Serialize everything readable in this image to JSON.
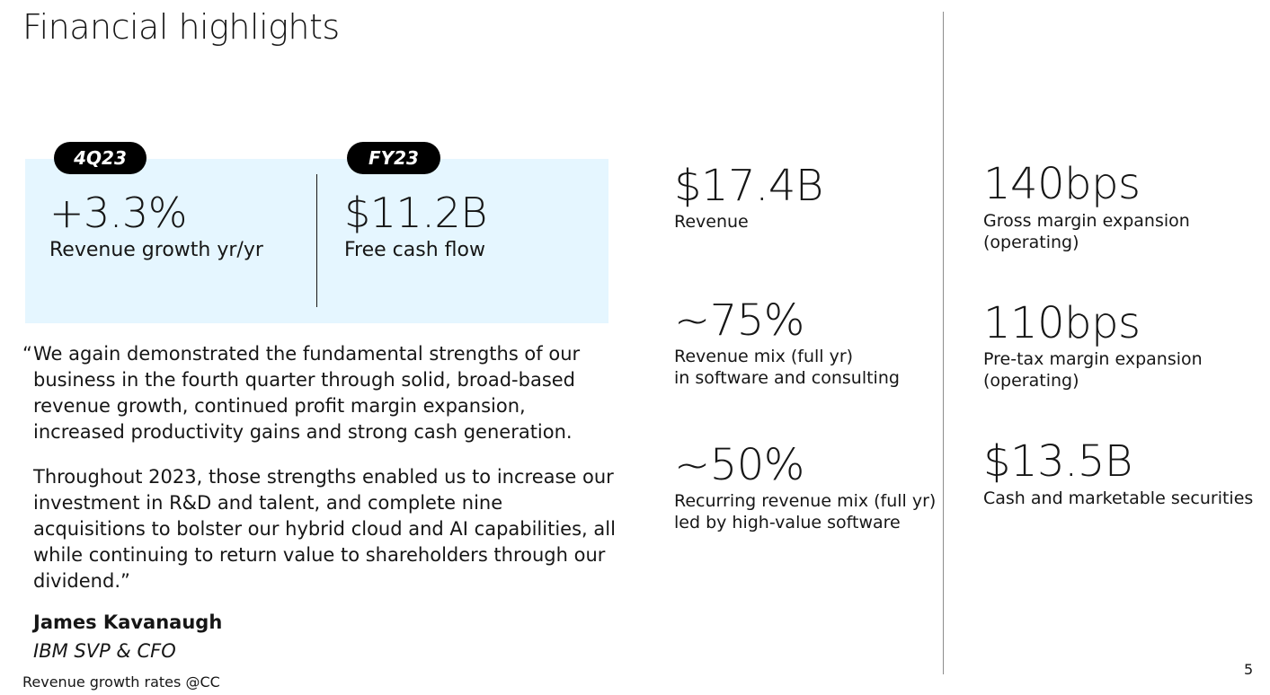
{
  "title": "Financial highlights",
  "left_panel": {
    "quarter_pill": "4Q23",
    "year_pill": "FY23",
    "quarter_kpi": {
      "value": "+3.3%",
      "label": "Revenue growth yr/yr"
    },
    "year_kpi": {
      "value": "$11.2B",
      "label": "Free cash flow"
    }
  },
  "quote": {
    "open_mark": "“",
    "paragraph_1": "We again demonstrated the fundamental strengths of our business in the fourth quarter through solid, broad-based revenue growth, continued profit margin expansion, increased productivity gains and strong cash generation.",
    "paragraph_2": "Throughout 2023, those strengths enabled us to increase our investment in R&D and talent, and complete nine acquisitions to bolster our hybrid cloud and AI capabilities, all while continuing to return value to shareholders through our dividend.”",
    "speaker_name": "James Kavanaugh",
    "speaker_title": "IBM SVP & CFO"
  },
  "middle_stats": [
    {
      "value": "$17.4B",
      "label_lines": [
        "Revenue"
      ]
    },
    {
      "value": "~75%",
      "label_lines": [
        "Revenue mix (full yr)",
        "in software and consulting"
      ]
    },
    {
      "value": "~50%",
      "label_lines": [
        "Recurring revenue mix (full yr)",
        "led by high-value software"
      ]
    }
  ],
  "right_stats": [
    {
      "value": "140bps",
      "label_lines": [
        "Gross margin expansion",
        "(operating)"
      ]
    },
    {
      "value": "110bps",
      "label_lines": [
        "Pre-tax margin expansion",
        "(operating)"
      ]
    },
    {
      "value": "$13.5B",
      "label_lines": [
        "Cash and marketable securities"
      ]
    }
  ],
  "footnote": "Revenue growth rates @CC",
  "page_number": "5"
}
